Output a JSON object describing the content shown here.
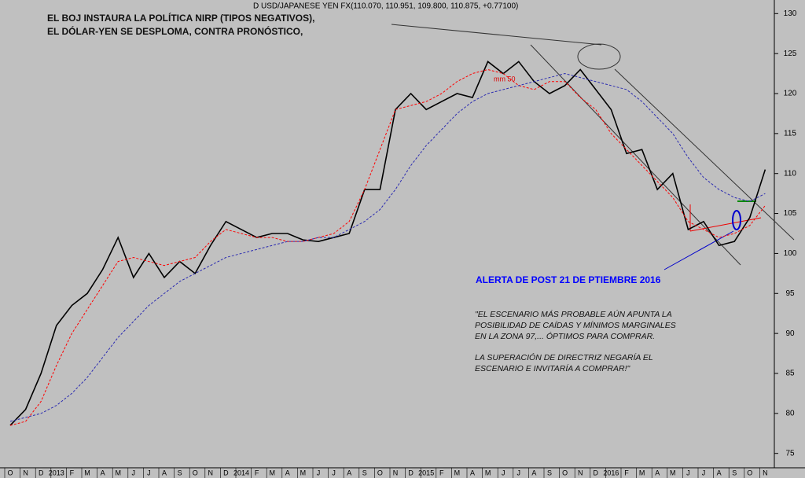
{
  "chart_data": {
    "type": "line",
    "header": "D USD/JAPANESE YEN FX(110.070, 110.951, 109.800, 110.875, +0.77100)",
    "title_lines": [
      "EL BOJ INSTAURA LA POLÍTICA NIRP (TIPOS NEGATIVOS),",
      "EL DÓLAR-YEN SE DESPLOMA, CONTRA PRONÓSTICO,"
    ],
    "annotations": {
      "ma_label": "mm 50",
      "alert": "ALERTA DE POST 21 DE PTIEMBRE 2016",
      "quote": [
        "\"EL ESCENARIO MÁS PROBABLE AÚN APUNTA LA",
        "POSIBILIDAD DE CAÍDAS Y MÍNIMOS MARGINALES",
        "EN LA ZONA 97,... ÓPTIMOS PARA COMPRAR.",
        "LA SUPERACIÓN DE DIRECTRIZ NEGARÍA EL",
        "ESCENARIO E INVITARÍA A COMPRAR!\""
      ]
    },
    "categories": [
      "O",
      "N",
      "D",
      "2013",
      "F",
      "M",
      "A",
      "M",
      "J",
      "J",
      "A",
      "S",
      "O",
      "N",
      "D",
      "2014",
      "F",
      "M",
      "A",
      "M",
      "J",
      "J",
      "A",
      "S",
      "O",
      "N",
      "D",
      "2015",
      "F",
      "M",
      "A",
      "M",
      "J",
      "J",
      "A",
      "S",
      "O",
      "N",
      "D",
      "2016",
      "F",
      "M",
      "A",
      "M",
      "J",
      "J",
      "A",
      "S",
      "O",
      "N"
    ],
    "series": [
      {
        "color": "#000000",
        "dashed": false,
        "values": [
          78.5,
          80.5,
          85,
          91,
          93.5,
          95,
          98,
          102,
          97,
          100,
          97,
          99,
          97.5,
          101,
          104,
          103,
          102,
          102.5,
          102.5,
          101.7,
          101.5,
          102,
          102.5,
          108,
          108,
          118,
          120,
          118,
          119,
          120,
          119.5,
          124,
          122.5,
          124,
          121.5,
          120,
          121,
          123,
          120.5,
          118,
          112.5,
          113,
          108,
          110,
          103,
          104,
          101,
          101.5,
          104.5,
          110.5
        ]
      },
      {
        "color": "#ff0000",
        "dashed": true,
        "values": [
          78.5,
          79,
          81.5,
          86,
          90,
          93,
          96,
          99,
          99.5,
          99,
          98.5,
          99,
          99.5,
          101.5,
          103,
          102.5,
          102,
          102,
          101.5,
          101.5,
          102,
          102.5,
          104,
          108,
          113,
          118,
          118.5,
          119,
          120,
          121.5,
          122.5,
          123,
          122.5,
          121,
          120.5,
          121.5,
          121.5,
          119.5,
          118,
          115,
          113,
          111,
          109,
          107,
          104,
          103,
          102,
          102.5,
          103.5,
          106
        ]
      },
      {
        "color": "#2b2bb0",
        "dashed": true,
        "values": [
          79,
          79.5,
          80,
          81,
          82.5,
          84.5,
          87,
          89.5,
          91.5,
          93.5,
          95,
          96.5,
          97.5,
          98.5,
          99.5,
          100,
          100.5,
          101,
          101.5,
          101.5,
          102,
          102,
          103,
          104,
          105.5,
          108,
          111,
          113.5,
          115.5,
          117.5,
          119,
          120,
          120.5,
          121,
          121.5,
          122,
          122.5,
          122,
          121.5,
          121,
          120.5,
          119,
          117,
          115,
          112,
          109.5,
          108,
          107,
          106.5,
          107.5
        ]
      }
    ],
    "ylim": [
      73.2,
      131.7
    ],
    "yticks": [
      75,
      80,
      85,
      90,
      95,
      100,
      105,
      110,
      115,
      120,
      125,
      130
    ]
  }
}
